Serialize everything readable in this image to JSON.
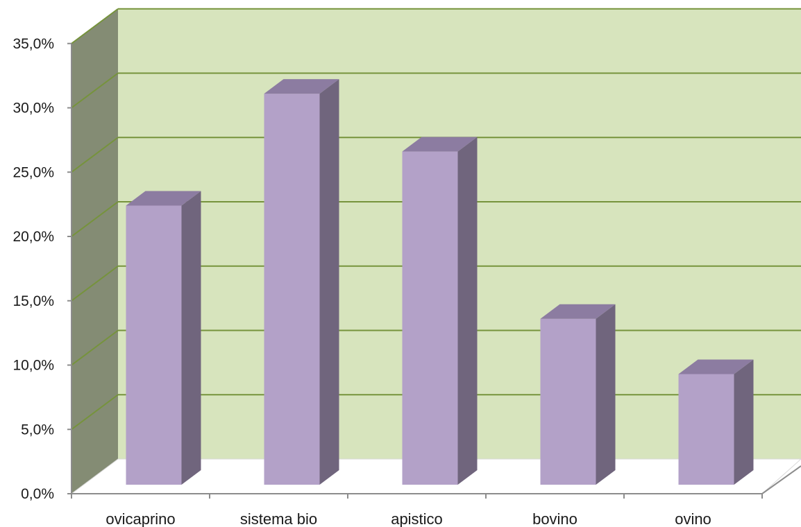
{
  "chart_data": {
    "type": "bar",
    "title": "",
    "xlabel": "",
    "ylabel": "",
    "categories": [
      "ovicaprino",
      "sistema bio",
      "apistico",
      "bovino",
      "ovino"
    ],
    "values": [
      21.7,
      30.4,
      25.9,
      12.9,
      8.6
    ],
    "ylim": [
      0,
      35
    ],
    "yticks": [
      "0,0%",
      "5,0%",
      "10,0%",
      "15,0%",
      "20,0%",
      "25,0%",
      "30,0%",
      "35,0%"
    ],
    "grid": true,
    "legend": "none",
    "colors": {
      "bar_front": "#b3a1c8",
      "bar_side": "#70657d",
      "bar_top": "#8c7ca1",
      "back_wall": "#d7e4bd",
      "side_wall": "#848c74",
      "floor": "#ffffff",
      "gridline": "#76933c"
    }
  }
}
